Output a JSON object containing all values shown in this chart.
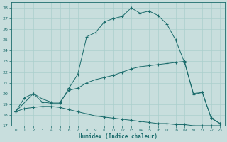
{
  "xlabel": "Humidex (Indice chaleur)",
  "bg_color": "#c8dedd",
  "grid_color": "#aacfcc",
  "line_color": "#1a6b6b",
  "xlim": [
    -0.5,
    23.5
  ],
  "ylim": [
    17,
    28.5
  ],
  "yticks": [
    17,
    18,
    19,
    20,
    21,
    22,
    23,
    24,
    25,
    26,
    27,
    28
  ],
  "xticks": [
    0,
    1,
    2,
    3,
    4,
    5,
    6,
    7,
    8,
    9,
    10,
    11,
    12,
    13,
    14,
    15,
    16,
    17,
    18,
    19,
    20,
    21,
    22,
    23
  ],
  "line1_x": [
    0,
    1,
    2,
    3,
    4,
    5,
    6,
    7,
    8,
    9,
    10,
    11,
    12,
    13,
    14,
    15,
    16,
    17,
    18,
    19,
    20,
    21,
    22,
    23
  ],
  "line1_y": [
    18.3,
    19.6,
    20.0,
    19.2,
    19.1,
    19.1,
    20.5,
    21.8,
    25.3,
    25.7,
    26.7,
    27.0,
    27.2,
    28.0,
    27.5,
    27.7,
    27.3,
    26.5,
    25.0,
    22.9,
    20.0,
    20.1,
    17.7,
    17.2
  ],
  "line2_x": [
    0,
    2,
    3,
    4,
    5,
    6,
    7,
    8,
    9,
    10,
    11,
    12,
    13,
    14,
    15,
    16,
    17,
    18,
    19,
    20,
    21,
    22,
    23
  ],
  "line2_y": [
    18.3,
    20.0,
    19.5,
    19.2,
    19.2,
    20.3,
    20.5,
    21.0,
    21.3,
    21.5,
    21.7,
    22.0,
    22.3,
    22.5,
    22.6,
    22.7,
    22.8,
    22.9,
    23.0,
    19.9,
    20.1,
    17.7,
    17.2
  ],
  "line3_x": [
    0,
    1,
    2,
    3,
    4,
    5,
    6,
    7,
    8,
    9,
    10,
    11,
    12,
    13,
    14,
    15,
    16,
    17,
    18,
    19,
    20,
    21,
    22,
    23
  ],
  "line3_y": [
    18.3,
    18.6,
    18.7,
    18.8,
    18.8,
    18.7,
    18.5,
    18.3,
    18.1,
    17.9,
    17.8,
    17.7,
    17.6,
    17.5,
    17.4,
    17.3,
    17.2,
    17.2,
    17.1,
    17.1,
    17.0,
    17.0,
    17.0,
    17.0
  ],
  "marker": "+",
  "markersize": 3.0
}
